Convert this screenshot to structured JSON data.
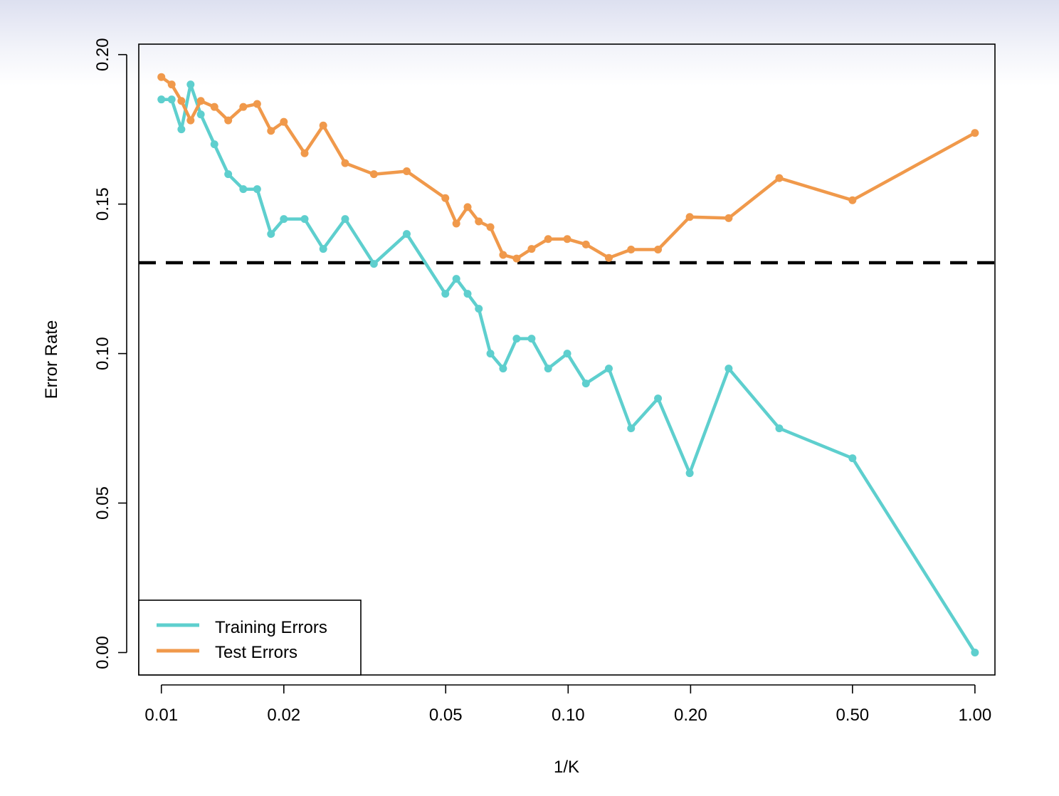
{
  "chart_data": {
    "type": "line",
    "title": "",
    "xlabel": "1/K",
    "ylabel": "Error Rate",
    "xscale": "log",
    "xlim": [
      0.0088,
      1.12
    ],
    "ylim": [
      -0.0075,
      0.2035
    ],
    "grid": false,
    "legend_position": "bottom-left",
    "x_ticks": [
      {
        "value": 0.01,
        "label": "0.01"
      },
      {
        "value": 0.02,
        "label": "0.02"
      },
      {
        "value": 0.05,
        "label": "0.05"
      },
      {
        "value": 0.1,
        "label": "0.10"
      },
      {
        "value": 0.2,
        "label": "0.20"
      },
      {
        "value": 0.5,
        "label": "0.50"
      },
      {
        "value": 1.0,
        "label": "1.00"
      }
    ],
    "y_ticks": [
      {
        "value": 0.0,
        "label": "0.00"
      },
      {
        "value": 0.05,
        "label": "0.05"
      },
      {
        "value": 0.1,
        "label": "0.10"
      },
      {
        "value": 0.15,
        "label": "0.15"
      },
      {
        "value": 0.2,
        "label": "0.20"
      }
    ],
    "reference_line": {
      "y": 0.1304,
      "color": "#000000",
      "style": "dashed"
    },
    "series": [
      {
        "name": "Training Errors",
        "color": "#5ecfce",
        "points": [
          [
            0.01,
            0.185
          ],
          [
            0.0106,
            0.185
          ],
          [
            0.0112,
            0.175
          ],
          [
            0.0118,
            0.19
          ],
          [
            0.0125,
            0.18
          ],
          [
            0.0135,
            0.17
          ],
          [
            0.0146,
            0.16
          ],
          [
            0.0159,
            0.155
          ],
          [
            0.0172,
            0.155
          ],
          [
            0.0186,
            0.14
          ],
          [
            0.02,
            0.145
          ],
          [
            0.0225,
            0.145
          ],
          [
            0.025,
            0.135
          ],
          [
            0.0283,
            0.145
          ],
          [
            0.0333,
            0.13
          ],
          [
            0.0401,
            0.14
          ],
          [
            0.0499,
            0.12
          ],
          [
            0.0531,
            0.125
          ],
          [
            0.0566,
            0.12
          ],
          [
            0.0603,
            0.115
          ],
          [
            0.0644,
            0.1
          ],
          [
            0.0692,
            0.095
          ],
          [
            0.0747,
            0.105
          ],
          [
            0.0813,
            0.105
          ],
          [
            0.0893,
            0.095
          ],
          [
            0.0995,
            0.1
          ],
          [
            0.1106,
            0.09
          ],
          [
            0.1259,
            0.095
          ],
          [
            0.1428,
            0.075
          ],
          [
            0.1663,
            0.085
          ],
          [
            0.199,
            0.06
          ],
          [
            0.2481,
            0.095
          ],
          [
            0.3304,
            0.075
          ],
          [
            0.5,
            0.065
          ],
          [
            1.0,
            0.0
          ]
        ]
      },
      {
        "name": "Test Errors",
        "color": "#f0994b",
        "points": [
          [
            0.01,
            0.1925
          ],
          [
            0.0106,
            0.19
          ],
          [
            0.0112,
            0.1845
          ],
          [
            0.0118,
            0.178
          ],
          [
            0.0125,
            0.1845
          ],
          [
            0.0135,
            0.1825
          ],
          [
            0.0146,
            0.178
          ],
          [
            0.0159,
            0.1825
          ],
          [
            0.0172,
            0.1835
          ],
          [
            0.0186,
            0.1745
          ],
          [
            0.02,
            0.1775
          ],
          [
            0.0225,
            0.167
          ],
          [
            0.025,
            0.1763
          ],
          [
            0.0283,
            0.1637
          ],
          [
            0.0333,
            0.16
          ],
          [
            0.0401,
            0.161
          ],
          [
            0.0499,
            0.152
          ],
          [
            0.0531,
            0.1435
          ],
          [
            0.0566,
            0.149
          ],
          [
            0.0603,
            0.1442
          ],
          [
            0.0644,
            0.1423
          ],
          [
            0.0692,
            0.133
          ],
          [
            0.0747,
            0.1318
          ],
          [
            0.0813,
            0.135
          ],
          [
            0.0893,
            0.1383
          ],
          [
            0.0995,
            0.1383
          ],
          [
            0.1106,
            0.1365
          ],
          [
            0.1259,
            0.132
          ],
          [
            0.1428,
            0.1348
          ],
          [
            0.1663,
            0.1348
          ],
          [
            0.199,
            0.1457
          ],
          [
            0.2481,
            0.1453
          ],
          [
            0.3304,
            0.1587
          ],
          [
            0.5,
            0.1513
          ],
          [
            1.0,
            0.1738
          ]
        ]
      }
    ]
  }
}
